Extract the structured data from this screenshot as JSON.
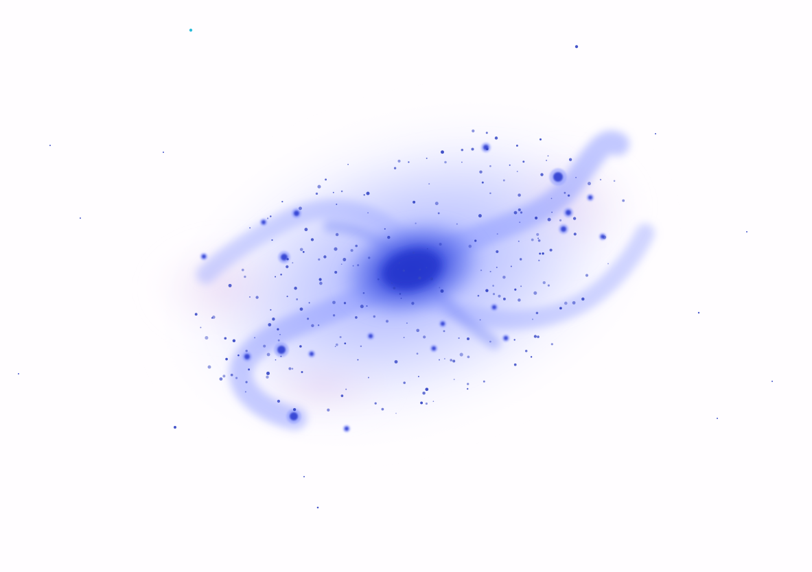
{
  "image": {
    "subject": "galaxy-inverted",
    "colors": {
      "background": "#fffdff",
      "halo": "#d9dcff",
      "disk": "#aab6ff",
      "arms": "#8f9cff",
      "core": "#3a4ee6",
      "nucleus": "#2337cc",
      "knots": "#2f3fd0",
      "stars": "#3344c4",
      "pink_tint": "#e5cfef",
      "cyan_star": "#1fb8d8"
    }
  }
}
